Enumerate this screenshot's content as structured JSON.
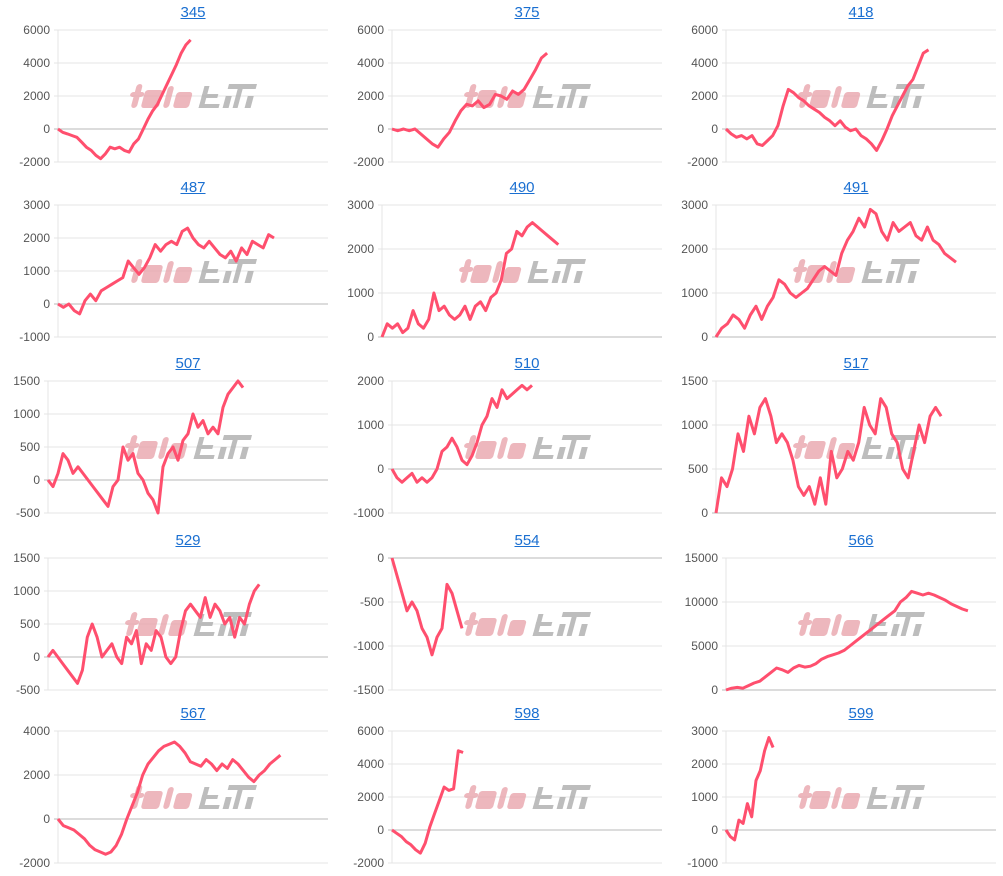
{
  "watermark": "みんレポ",
  "colors": {
    "line": "#ff4f6e",
    "grid": "#e4e4e4",
    "zero": "#b8b8b8",
    "title": "#1a6fd1",
    "tick": "#555555",
    "wm_pink": "#e8a0a8",
    "wm_gray": "#a8a8a8"
  },
  "chart_data": [
    {
      "type": "line",
      "title": "345",
      "ylim": [
        -2000,
        6000
      ],
      "yticks": [
        6000,
        4000,
        2000,
        0,
        -2000
      ],
      "xlim": [
        0,
        57
      ],
      "values": [
        0,
        -200,
        -300,
        -400,
        -500,
        -800,
        -1100,
        -1300,
        -1600,
        -1800,
        -1500,
        -1100,
        -1200,
        -1100,
        -1300,
        -1400,
        -900,
        -600,
        0,
        600,
        1100,
        1500,
        2100,
        2700,
        3300,
        3900,
        4600,
        5100,
        5400
      ]
    },
    {
      "type": "line",
      "title": "375",
      "ylim": [
        -2000,
        6000
      ],
      "yticks": [
        6000,
        4000,
        2000,
        0,
        -2000
      ],
      "xlim": [
        0,
        47
      ],
      "values": [
        0,
        -100,
        0,
        -100,
        0,
        -300,
        -600,
        -900,
        -1100,
        -600,
        -200,
        500,
        1100,
        1500,
        1400,
        1700,
        1300,
        1500,
        2100,
        2000,
        1800,
        2300,
        2100,
        2400,
        3000,
        3600,
        4300,
        4600
      ]
    },
    {
      "type": "line",
      "title": "418",
      "ylim": [
        -2000,
        6000
      ],
      "yticks": [
        6000,
        4000,
        2000,
        0,
        -2000
      ],
      "xlim": [
        0,
        52
      ],
      "values": [
        0,
        -300,
        -500,
        -400,
        -600,
        -400,
        -900,
        -1000,
        -700,
        -400,
        200,
        1400,
        2400,
        2200,
        1900,
        1700,
        1400,
        1200,
        1000,
        700,
        500,
        200,
        500,
        100,
        -100,
        0,
        -400,
        -600,
        -900,
        -1300,
        -700,
        0,
        800,
        1400,
        2000,
        2600,
        3000,
        3800,
        4600,
        4800
      ]
    },
    {
      "type": "line",
      "title": "487",
      "ylim": [
        -1000,
        3000
      ],
      "yticks": [
        3000,
        2000,
        1000,
        0,
        -1000
      ],
      "xlim": [
        0,
        50
      ],
      "values": [
        0,
        -100,
        0,
        -200,
        -300,
        100,
        300,
        100,
        400,
        500,
        600,
        700,
        800,
        1300,
        1100,
        900,
        1100,
        1400,
        1800,
        1600,
        1800,
        1900,
        1800,
        2200,
        2300,
        2000,
        1800,
        1700,
        1900,
        1700,
        1500,
        1400,
        1600,
        1300,
        1700,
        1500,
        1900,
        1800,
        1700,
        2100,
        2000
      ]
    },
    {
      "type": "line",
      "title": "490",
      "ylim": [
        0,
        3000
      ],
      "yticks": [
        3000,
        2000,
        1000,
        0
      ],
      "xlim": [
        0,
        54
      ],
      "values": [
        0,
        300,
        200,
        300,
        100,
        200,
        600,
        300,
        200,
        400,
        1000,
        600,
        700,
        500,
        400,
        500,
        700,
        400,
        700,
        800,
        600,
        900,
        1000,
        1300,
        1900,
        2000,
        2400,
        2300,
        2500,
        2600,
        2500,
        2400,
        2300,
        2200,
        2100
      ]
    },
    {
      "type": "line",
      "title": "491",
      "ylim": [
        0,
        3000
      ],
      "yticks": [
        3000,
        2000,
        1000,
        0
      ],
      "xlim": [
        0,
        49
      ],
      "values": [
        0,
        200,
        300,
        500,
        400,
        200,
        500,
        700,
        400,
        700,
        900,
        1300,
        1200,
        1000,
        900,
        1000,
        1100,
        1300,
        1500,
        1600,
        1500,
        1400,
        1900,
        2200,
        2400,
        2700,
        2500,
        2900,
        2800,
        2400,
        2200,
        2600,
        2400,
        2500,
        2600,
        2300,
        2200,
        2500,
        2200,
        2100,
        1900,
        1800,
        1700
      ]
    },
    {
      "type": "line",
      "title": "507",
      "ylim": [
        -500,
        1500
      ],
      "yticks": [
        1500,
        1000,
        500,
        0,
        -500
      ],
      "xlim": [
        0,
        56
      ],
      "values": [
        0,
        -100,
        100,
        400,
        300,
        100,
        200,
        100,
        0,
        -100,
        -200,
        -300,
        -400,
        -100,
        0,
        500,
        300,
        400,
        100,
        0,
        -200,
        -300,
        -500,
        200,
        400,
        500,
        300,
        600,
        700,
        1000,
        800,
        900,
        700,
        800,
        700,
        1100,
        1300,
        1400,
        1500,
        1400
      ]
    },
    {
      "type": "line",
      "title": "510",
      "ylim": [
        -1000,
        2000
      ],
      "yticks": [
        2000,
        1000,
        0,
        -1000
      ],
      "xlim": [
        0,
        54
      ],
      "values": [
        0,
        -200,
        -300,
        -200,
        -100,
        -300,
        -200,
        -300,
        -200,
        0,
        400,
        500,
        700,
        500,
        200,
        100,
        300,
        600,
        1000,
        1200,
        1600,
        1400,
        1800,
        1600,
        1700,
        1800,
        1900,
        1800,
        1900
      ]
    },
    {
      "type": "line",
      "title": "517",
      "ylim": [
        0,
        1500
      ],
      "yticks": [
        1500,
        1000,
        500,
        0
      ],
      "xlim": [
        0,
        51
      ],
      "values": [
        0,
        400,
        300,
        500,
        900,
        700,
        1100,
        900,
        1200,
        1300,
        1100,
        800,
        900,
        800,
        600,
        300,
        200,
        300,
        100,
        400,
        100,
        700,
        400,
        500,
        700,
        600,
        800,
        1200,
        1000,
        900,
        1300,
        1200,
        900,
        800,
        500,
        400,
        700,
        1000,
        800,
        1100,
        1200,
        1100
      ]
    },
    {
      "type": "line",
      "title": "529",
      "ylim": [
        -500,
        1500
      ],
      "yticks": [
        1500,
        1000,
        500,
        0,
        -500
      ],
      "xlim": [
        0,
        57
      ],
      "values": [
        0,
        100,
        0,
        -100,
        -200,
        -300,
        -400,
        -200,
        300,
        500,
        300,
        0,
        100,
        200,
        0,
        -100,
        300,
        200,
        400,
        -100,
        200,
        100,
        400,
        300,
        0,
        -100,
        0,
        400,
        700,
        800,
        700,
        600,
        900,
        600,
        800,
        700,
        500,
        600,
        300,
        600,
        500,
        800,
        1000,
        1100
      ]
    },
    {
      "type": "line",
      "title": "554",
      "ylim": [
        -1500,
        0
      ],
      "yticks": [
        0,
        -500,
        -1000,
        -1500
      ],
      "xlim": [
        0,
        54
      ],
      "values": [
        0,
        -200,
        -400,
        -600,
        -500,
        -600,
        -800,
        -900,
        -1100,
        -900,
        -800,
        -300,
        -400,
        -600,
        -800
      ]
    },
    {
      "type": "line",
      "title": "566",
      "ylim": [
        0,
        15000
      ],
      "yticks": [
        15000,
        10000,
        5000,
        0
      ],
      "xlim": [
        0,
        48
      ],
      "values": [
        0,
        200,
        300,
        200,
        500,
        800,
        1000,
        1500,
        2000,
        2500,
        2300,
        2000,
        2500,
        2800,
        2600,
        2700,
        3000,
        3500,
        3800,
        4000,
        4200,
        4500,
        5000,
        5500,
        6000,
        6500,
        7000,
        7500,
        8000,
        8500,
        9000,
        10000,
        10500,
        11200,
        11000,
        10800,
        11000,
        10800,
        10500,
        10200,
        9800,
        9500,
        9200,
        9000
      ]
    },
    {
      "type": "line",
      "title": "567",
      "ylim": [
        -2000,
        4000
      ],
      "yticks": [
        4000,
        2000,
        0,
        -2000
      ],
      "xlim": [
        0,
        51
      ],
      "values": [
        0,
        -300,
        -400,
        -500,
        -700,
        -900,
        -1200,
        -1400,
        -1500,
        -1600,
        -1500,
        -1200,
        -700,
        0,
        600,
        1200,
        2000,
        2500,
        2800,
        3100,
        3300,
        3400,
        3500,
        3300,
        3000,
        2600,
        2500,
        2400,
        2700,
        2500,
        2200,
        2500,
        2300,
        2700,
        2500,
        2200,
        1900,
        1700,
        2000,
        2200,
        2500,
        2700,
        2900
      ]
    },
    {
      "type": "line",
      "title": "598",
      "ylim": [
        -2000,
        6000
      ],
      "yticks": [
        6000,
        4000,
        2000,
        0,
        -2000
      ],
      "xlim": [
        0,
        57
      ],
      "values": [
        0,
        -200,
        -400,
        -700,
        -900,
        -1200,
        -1400,
        -800,
        200,
        1000,
        1800,
        2600,
        2400,
        2500,
        4800,
        4700
      ]
    },
    {
      "type": "line",
      "title": "599",
      "ylim": [
        -1000,
        3000
      ],
      "yticks": [
        3000,
        2000,
        1000,
        0,
        -1000
      ],
      "xlim": [
        0,
        63
      ],
      "values": [
        0,
        -200,
        -300,
        300,
        200,
        800,
        400,
        1500,
        1800,
        2400,
        2800,
        2500
      ]
    }
  ]
}
